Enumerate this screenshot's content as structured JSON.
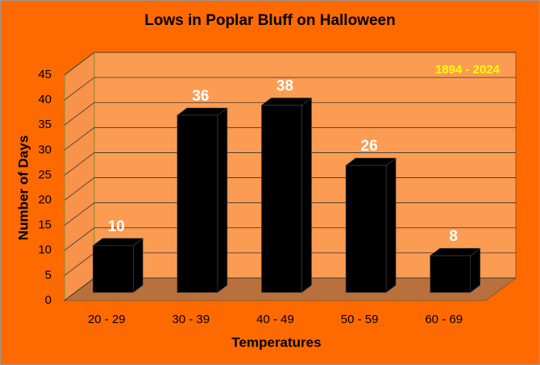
{
  "chart_data": {
    "type": "bar",
    "title": "Lows in Poplar Bluff on Halloween",
    "annotation": "1894 - 2024",
    "x_label": "Temperatures",
    "y_label": "Number of Days",
    "categories": [
      "20 - 29",
      "30 - 39",
      "40 - 49",
      "50 - 59",
      "60 - 69"
    ],
    "values": [
      10,
      36,
      38,
      26,
      8
    ],
    "color": "#000000",
    "ylim": [
      0,
      45
    ],
    "yticks": [
      0,
      5,
      10,
      15,
      20,
      25,
      30,
      35,
      40,
      45
    ],
    "grid": true
  }
}
